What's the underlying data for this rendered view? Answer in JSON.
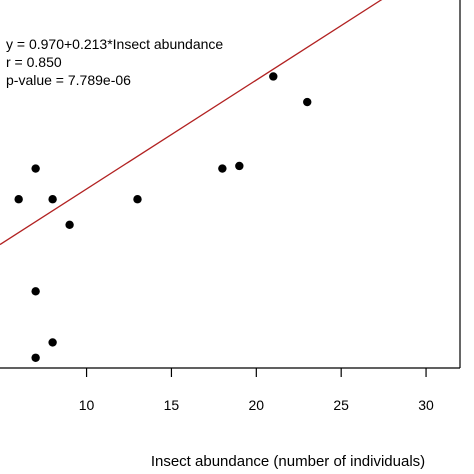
{
  "chart_data": {
    "type": "scatter",
    "title": "",
    "xlabel": "Insect abundance (number of individuals)",
    "ylabel": "",
    "xlim": [
      4.9,
      32.0
    ],
    "ylim": [
      -0.4,
      6.6
    ],
    "x_ticks": [
      10,
      15,
      20,
      25,
      30
    ],
    "x_tick_labels": [
      "10",
      "15",
      "20",
      "25",
      "30"
    ],
    "grid": false,
    "annotations": [
      "y = 0.970+0.213*Insect abundance",
      "r = 0.850",
      "p-value = 7.789e-06"
    ],
    "regression": {
      "intercept": 0.97,
      "slope": 0.213,
      "color": "#b22222"
    },
    "points": [
      {
        "x": 6,
        "y": 2.9
      },
      {
        "x": 7,
        "y": 3.5
      },
      {
        "x": 7,
        "y": 1.1
      },
      {
        "x": 7,
        "y": -0.2
      },
      {
        "x": 8,
        "y": 2.9
      },
      {
        "x": 8,
        "y": 0.1
      },
      {
        "x": 9,
        "y": 2.4
      },
      {
        "x": 13,
        "y": 2.9
      },
      {
        "x": 18,
        "y": 3.5
      },
      {
        "x": 19,
        "y": 3.55
      },
      {
        "x": 21,
        "y": 5.3
      },
      {
        "x": 23,
        "y": 4.8
      }
    ],
    "point_color": "#000000"
  }
}
